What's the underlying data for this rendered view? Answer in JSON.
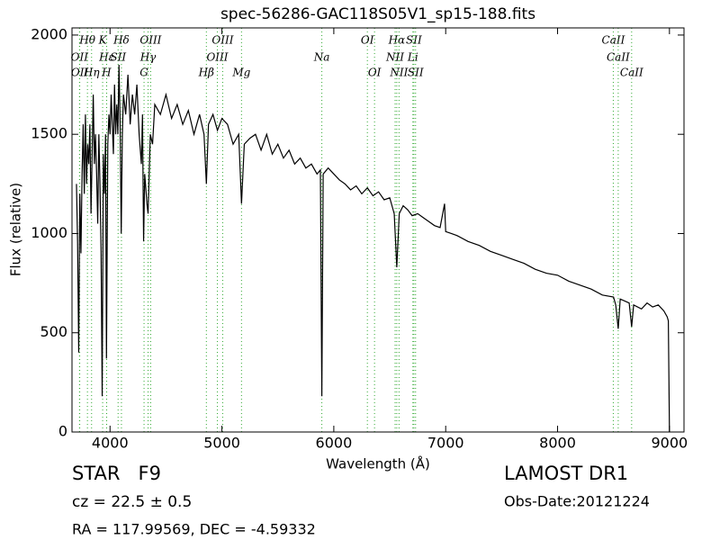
{
  "chart_data": {
    "type": "line",
    "title": "spec-56286-GAC118S05V1_sp15-188.fits",
    "x_label": "Wavelength (Å)",
    "y_label": "Flux (relative)",
    "xlim": [
      3660,
      9130
    ],
    "ylim": [
      0,
      2036
    ],
    "xticks": [
      4000,
      5000,
      6000,
      7000,
      8000,
      9000
    ],
    "yticks": [
      0,
      500,
      1000,
      1500,
      2000
    ],
    "color": "#000000",
    "annotation_color": "#33aa33",
    "x": [
      3700,
      3710,
      3720,
      3730,
      3740,
      3750,
      3760,
      3770,
      3780,
      3790,
      3800,
      3810,
      3820,
      3830,
      3840,
      3850,
      3860,
      3870,
      3880,
      3890,
      3900,
      3910,
      3920,
      3930,
      3940,
      3950,
      3960,
      3968,
      3980,
      3990,
      4000,
      4010,
      4020,
      4030,
      4040,
      4050,
      4060,
      4070,
      4080,
      4090,
      4100,
      4110,
      4120,
      4140,
      4160,
      4180,
      4200,
      4220,
      4240,
      4260,
      4280,
      4290,
      4300,
      4310,
      4330,
      4340,
      4360,
      4380,
      4400,
      4450,
      4500,
      4550,
      4600,
      4650,
      4700,
      4750,
      4800,
      4840,
      4861,
      4880,
      4920,
      4960,
      5000,
      5050,
      5100,
      5150,
      5175,
      5200,
      5250,
      5300,
      5350,
      5400,
      5450,
      5500,
      5550,
      5600,
      5650,
      5700,
      5750,
      5800,
      5850,
      5880,
      5893,
      5905,
      5950,
      6000,
      6050,
      6100,
      6150,
      6200,
      6250,
      6300,
      6350,
      6400,
      6450,
      6500,
      6540,
      6563,
      6585,
      6620,
      6660,
      6700,
      6750,
      6800,
      6850,
      6900,
      6950,
      6990,
      7000,
      7050,
      7100,
      7200,
      7300,
      7400,
      7500,
      7600,
      7700,
      7800,
      7900,
      8000,
      8100,
      8200,
      8300,
      8400,
      8500,
      8520,
      8542,
      8560,
      8600,
      8640,
      8662,
      8680,
      8750,
      8800,
      8850,
      8900,
      8950,
      8980,
      8990,
      9000
    ],
    "values": [
      1250,
      950,
      400,
      1200,
      900,
      1300,
      1550,
      1200,
      1600,
      1250,
      1450,
      1350,
      1550,
      1100,
      1400,
      1700,
      1350,
      1500,
      1300,
      1050,
      1500,
      1250,
      900,
      180,
      1400,
      1200,
      1500,
      370,
      1450,
      1600,
      1500,
      1700,
      1550,
      1400,
      1750,
      1500,
      1650,
      1500,
      1850,
      1550,
      1000,
      1500,
      1700,
      1600,
      1800,
      1550,
      1700,
      1600,
      1750,
      1500,
      1350,
      1600,
      960,
      1300,
      1150,
      1100,
      1500,
      1450,
      1650,
      1600,
      1700,
      1580,
      1650,
      1550,
      1620,
      1500,
      1600,
      1500,
      1250,
      1550,
      1600,
      1520,
      1580,
      1550,
      1450,
      1500,
      1150,
      1450,
      1480,
      1500,
      1420,
      1500,
      1400,
      1450,
      1380,
      1420,
      1350,
      1380,
      1330,
      1350,
      1300,
      1320,
      180,
      1300,
      1330,
      1300,
      1270,
      1250,
      1220,
      1240,
      1200,
      1230,
      1190,
      1210,
      1170,
      1180,
      1100,
      830,
      1100,
      1140,
      1120,
      1090,
      1100,
      1080,
      1060,
      1040,
      1030,
      1150,
      1010,
      1000,
      990,
      960,
      940,
      910,
      890,
      870,
      850,
      820,
      800,
      790,
      760,
      740,
      720,
      690,
      680,
      640,
      520,
      670,
      660,
      650,
      530,
      640,
      620,
      650,
      630,
      640,
      610,
      580,
      560,
      0
    ],
    "line_labels": [
      [
        {
          "label": "Hθ",
          "x": 3798
        },
        {
          "label": "K",
          "x": 3934
        },
        {
          "label": "Hδ",
          "x": 4102
        },
        {
          "label": "OIII",
          "x": 4363
        },
        {
          "label": "OIII",
          "x": 5007
        },
        {
          "label": "OI",
          "x": 6300
        },
        {
          "label": "Hα",
          "x": 6563
        },
        {
          "label": "SII",
          "x": 6716
        },
        {
          "label": "CaII",
          "x": 8498
        }
      ],
      [
        {
          "label": "OII",
          "x": 3727
        },
        {
          "label": "Hε",
          "x": 3970
        },
        {
          "label": "SII",
          "x": 4072
        },
        {
          "label": "Hγ",
          "x": 4340
        },
        {
          "label": "OIII",
          "x": 4959
        },
        {
          "label": "Na",
          "x": 5893
        },
        {
          "label": "NII",
          "x": 6548
        },
        {
          "label": "Li",
          "x": 6707
        },
        {
          "label": "CaII",
          "x": 8542
        }
      ],
      [
        {
          "label": "OII",
          "x": 3729
        },
        {
          "label": "Hη",
          "x": 3835
        },
        {
          "label": "H",
          "x": 3969
        },
        {
          "label": "G",
          "x": 4304
        },
        {
          "label": "Hβ",
          "x": 4861
        },
        {
          "label": "Mg",
          "x": 5175
        },
        {
          "label": "OI",
          "x": 6364
        },
        {
          "label": "NII",
          "x": 6583
        },
        {
          "label": "SII",
          "x": 6731
        },
        {
          "label": "CaII",
          "x": 8662
        }
      ]
    ]
  },
  "info": {
    "object": "STAR   F9",
    "redshift": "cz = 22.5 ± 0.5",
    "coordinates": "RA = 117.99569, DEC = -4.59332",
    "survey": "LAMOST DR1",
    "obs_date": "Obs-Date:20121224"
  }
}
